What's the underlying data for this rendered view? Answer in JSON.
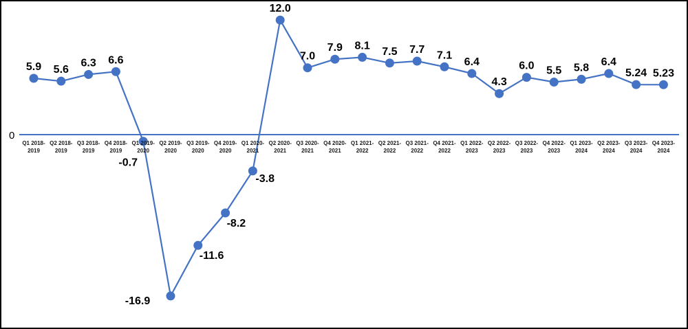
{
  "chart_data": {
    "type": "line",
    "title": "",
    "xlabel": "",
    "ylabel": "",
    "ylim": [
      -20,
      15
    ],
    "grid": false,
    "legend": "none",
    "zero_label": "0",
    "categories": [
      "Q1 2018-2019",
      "Q2 2018-2019",
      "Q3 2018-2019",
      "Q4 2018-2019",
      "Q1 2019-2020",
      "Q2 2019-2020",
      "Q3 2019-2020",
      "Q4 2019-2020",
      "Q1 2020-2021",
      "Q2 2020-2021",
      "Q3 2020-2021",
      "Q4 2020-2021",
      "Q1 2021-2022",
      "Q2 2021-2022",
      "Q3 2021-2022",
      "Q4 2021-2022",
      "Q1 2022-2023",
      "Q2 2022-2023",
      "Q3 2022-2023",
      "Q4 2022-2023",
      "Q1 2023-2024",
      "Q2 2023-2024",
      "Q3 2023-2024",
      "Q4 2023-2024"
    ],
    "tick_lines": [
      [
        "Q1 2018-",
        "2019"
      ],
      [
        "Q2 2018-",
        "2019"
      ],
      [
        "Q3 2018-",
        "2019"
      ],
      [
        "Q4 2018-",
        "2019"
      ],
      [
        "Q1 2019-",
        "2020"
      ],
      [
        "Q2 2019-",
        "2020"
      ],
      [
        "Q3 2019-",
        "2020"
      ],
      [
        "Q4 2019-",
        "2020"
      ],
      [
        "Q1 2020-",
        "2021"
      ],
      [
        "Q2 2020-",
        "2021"
      ],
      [
        "Q3 2020-",
        "2021"
      ],
      [
        "Q4 2020-",
        "2021"
      ],
      [
        "Q1 2021-",
        "2022"
      ],
      [
        "Q2 2021-",
        "2022"
      ],
      [
        "Q3 2021-",
        "2022"
      ],
      [
        "Q4 2021-",
        "2022"
      ],
      [
        "Q1 2022-",
        "2023"
      ],
      [
        "Q2 2022-",
        "2023"
      ],
      [
        "Q3 2022-",
        "2023"
      ],
      [
        "Q4 2022-",
        "2023"
      ],
      [
        "Q1 2023-",
        "2024"
      ],
      [
        "Q2 2023-",
        "2024"
      ],
      [
        "Q3 2023-",
        "2024"
      ],
      [
        "Q4 2023-",
        "2024"
      ]
    ],
    "series": [
      {
        "values": [
          5.9,
          5.6,
          6.3,
          6.6,
          -0.7,
          -16.9,
          -11.6,
          -8.2,
          -3.8,
          12.0,
          7.0,
          7.9,
          8.1,
          7.5,
          7.7,
          7.1,
          6.4,
          4.3,
          6.0,
          5.5,
          5.8,
          6.4,
          5.24,
          5.23
        ],
        "labels": [
          "5.9",
          "5.6",
          "6.3",
          "6.6",
          "-0.7",
          "-16.9",
          "-11.6",
          "-8.2",
          "-3.8",
          "12.0",
          "7.0",
          "7.9",
          "8.1",
          "7.5",
          "7.7",
          "7.1",
          "6.4",
          "4.3",
          "6.0",
          "5.5",
          "5.8",
          "6.4",
          "5.24",
          "5.23"
        ],
        "color": "#4472c4"
      }
    ]
  }
}
